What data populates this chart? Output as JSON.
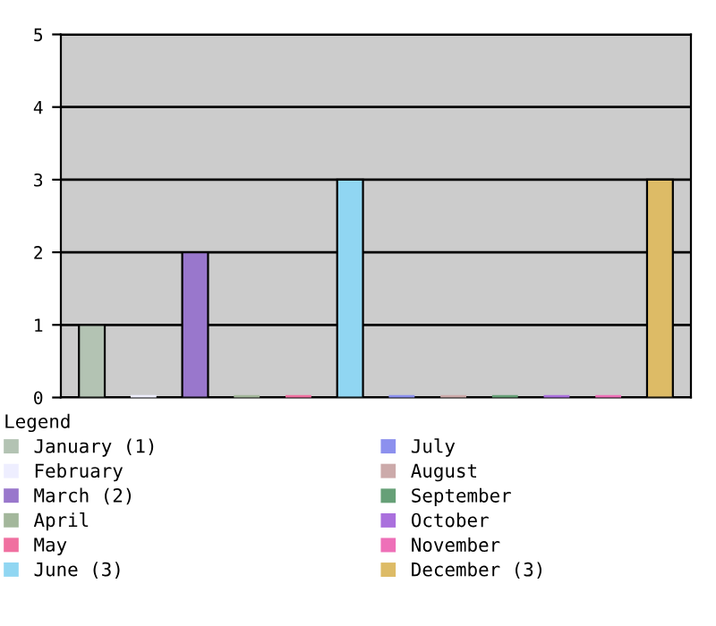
{
  "chart_data": {
    "type": "bar",
    "categories": [
      null,
      null,
      null,
      null,
      null,
      null,
      null,
      null,
      null,
      null,
      null,
      null
    ],
    "series": [
      {
        "name": "January (1)",
        "color": "#b3c3b3",
        "values": [
          1,
          null,
          null,
          null,
          null,
          null,
          null,
          null,
          null,
          null,
          null,
          null
        ]
      },
      {
        "name": "February",
        "color": "#eeeeff",
        "values": [
          null,
          0,
          null,
          null,
          null,
          null,
          null,
          null,
          null,
          null,
          null,
          null
        ]
      },
      {
        "name": "March (2)",
        "color": "#9977cc",
        "values": [
          null,
          null,
          2,
          null,
          null,
          null,
          null,
          null,
          null,
          null,
          null,
          null
        ]
      },
      {
        "name": "April",
        "color": "#a3b79b",
        "values": [
          null,
          null,
          null,
          0,
          null,
          null,
          null,
          null,
          null,
          null,
          null,
          null
        ]
      },
      {
        "name": "May",
        "color": "#f070a0",
        "values": [
          null,
          null,
          null,
          null,
          0,
          null,
          null,
          null,
          null,
          null,
          null,
          null
        ]
      },
      {
        "name": "June (3)",
        "color": "#90d6f2",
        "values": [
          null,
          null,
          null,
          null,
          null,
          3,
          null,
          null,
          null,
          null,
          null,
          null
        ]
      },
      {
        "name": "July",
        "color": "#8c90ee",
        "values": [
          null,
          null,
          null,
          null,
          null,
          null,
          0,
          null,
          null,
          null,
          null,
          null
        ]
      },
      {
        "name": "August",
        "color": "#ccaaaa",
        "values": [
          null,
          null,
          null,
          null,
          null,
          null,
          null,
          0,
          null,
          null,
          null,
          null
        ]
      },
      {
        "name": "September",
        "color": "#66a077",
        "values": [
          null,
          null,
          null,
          null,
          null,
          null,
          null,
          null,
          0,
          null,
          null,
          null
        ]
      },
      {
        "name": "October",
        "color": "#aa70dd",
        "values": [
          null,
          null,
          null,
          null,
          null,
          null,
          null,
          null,
          null,
          0,
          null,
          null
        ]
      },
      {
        "name": "November",
        "color": "#ee70b8",
        "values": [
          null,
          null,
          null,
          null,
          null,
          null,
          null,
          null,
          null,
          null,
          0,
          null
        ]
      },
      {
        "name": "December (3)",
        "color": "#ddbb66",
        "values": [
          null,
          null,
          null,
          null,
          null,
          null,
          null,
          null,
          null,
          null,
          null,
          3
        ]
      }
    ],
    "ylim": [
      0,
      5
    ],
    "yticks": [
      0,
      1,
      2,
      3,
      4,
      5
    ],
    "grid": "y",
    "tick_labels": "y",
    "legend": "bottom",
    "legend_title": "Legend"
  }
}
